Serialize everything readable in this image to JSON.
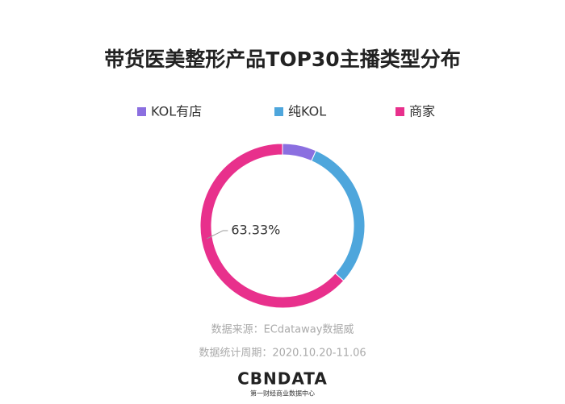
{
  "chart_data": {
    "type": "donut",
    "title": "带货医美整形产品TOP30主播类型分布",
    "categories": [
      "KOL有店",
      "纯KOL",
      "商家"
    ],
    "values": [
      6.67,
      30,
      63.33
    ],
    "value_labels": [
      null,
      null,
      "63.33%"
    ],
    "colors": [
      "#8b6fe0",
      "#4ea6dc",
      "#e8308c"
    ],
    "legend": "top"
  },
  "notes": [
    "数据来源：ECdataway数据威",
    "数据统计周期：2020.10.20-11.06"
  ],
  "logo": {
    "name": "CBNDATA",
    "subtitle": "第一财经商业数据中心"
  }
}
